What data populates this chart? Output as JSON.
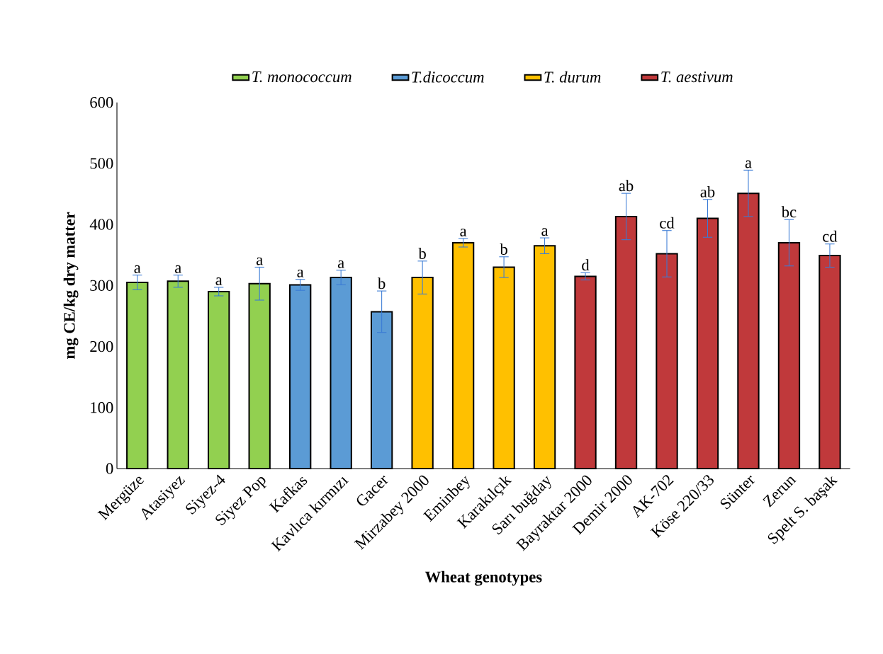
{
  "chart_data": {
    "type": "bar",
    "xlabel": "Wheat genotypes",
    "ylabel": "mg CE/kg dry matter",
    "categories": [
      "Mergüze",
      "Atasiyez",
      "Siyez-4",
      "Siyez Pop",
      "Kafkas",
      "Kavlıca kırmızı",
      "Gacer",
      "Mirzabey 2000",
      "Eminbey",
      "Karakılçık",
      "Sarı buğday",
      "Bayraktar 2000",
      "Demir 2000",
      "AK-702",
      "Köse 220/33",
      "Sünter",
      "Zerun",
      "Spelt S. başak"
    ],
    "series": [
      {
        "name": "T. monococcum",
        "color": "#92d050",
        "values": [
          305,
          307,
          290,
          303,
          null,
          null,
          null,
          null,
          null,
          null,
          null,
          null,
          null,
          null,
          null,
          null,
          null,
          null
        ],
        "errors": [
          12,
          10,
          7,
          27,
          null,
          null,
          null,
          null,
          null,
          null,
          null,
          null,
          null,
          null,
          null,
          null,
          null,
          null
        ],
        "value_labels": [
          "a",
          "a",
          "a",
          "a",
          null,
          null,
          null,
          null,
          null,
          null,
          null,
          null,
          null,
          null,
          null,
          null,
          null,
          null
        ]
      },
      {
        "name": "T.dicoccum",
        "color": "#5b9bd5",
        "values": [
          null,
          null,
          null,
          null,
          301,
          313,
          257,
          null,
          null,
          null,
          null,
          null,
          null,
          null,
          null,
          null,
          null,
          null
        ],
        "errors": [
          null,
          null,
          null,
          null,
          9,
          12,
          34,
          null,
          null,
          null,
          null,
          null,
          null,
          null,
          null,
          null,
          null,
          null
        ],
        "value_labels": [
          null,
          null,
          null,
          null,
          "a",
          "a",
          "b",
          null,
          null,
          null,
          null,
          null,
          null,
          null,
          null,
          null,
          null,
          null
        ]
      },
      {
        "name": "T. durum",
        "color": "#ffc000",
        "values": [
          null,
          null,
          null,
          null,
          null,
          null,
          null,
          313,
          370,
          330,
          365,
          null,
          null,
          null,
          null,
          null,
          null,
          null
        ],
        "errors": [
          null,
          null,
          null,
          null,
          null,
          null,
          null,
          27,
          7,
          17,
          13,
          null,
          null,
          null,
          null,
          null,
          null,
          null
        ],
        "value_labels": [
          null,
          null,
          null,
          null,
          null,
          null,
          null,
          "b",
          "a",
          "b",
          "a",
          null,
          null,
          null,
          null,
          null,
          null,
          null
        ]
      },
      {
        "name": "T. aestivum",
        "color": "#c0393b",
        "values": [
          null,
          null,
          null,
          null,
          null,
          null,
          null,
          null,
          null,
          null,
          null,
          315,
          413,
          352,
          410,
          451,
          370,
          349
        ],
        "errors": [
          null,
          null,
          null,
          null,
          null,
          null,
          null,
          null,
          null,
          null,
          null,
          6,
          38,
          38,
          31,
          38,
          38,
          19
        ],
        "value_labels": [
          null,
          null,
          null,
          null,
          null,
          null,
          null,
          null,
          null,
          null,
          null,
          "d",
          "ab",
          "cd",
          "ab",
          "a",
          "bc",
          "cd"
        ]
      }
    ],
    "ylim": [
      0,
      600
    ],
    "yticks": [
      0,
      100,
      200,
      300,
      400,
      500,
      600
    ],
    "legend": "top",
    "grid": false
  }
}
